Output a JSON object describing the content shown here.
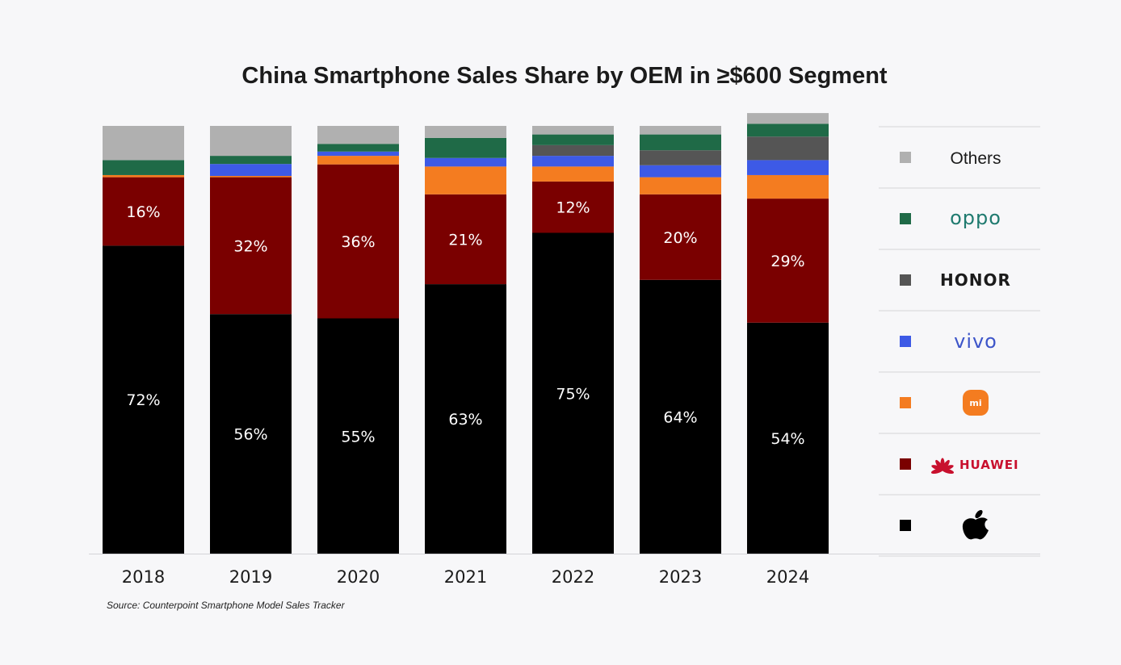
{
  "chart_data": {
    "type": "bar",
    "stacked": true,
    "title": "China Smartphone Sales Share by OEM in ≥$600 Segment",
    "source": "Source: Counterpoint Smartphone Model Sales Tracker",
    "categories": [
      "2018",
      "2019",
      "2020",
      "2021",
      "2022",
      "2023",
      "2024"
    ],
    "ylim": [
      0,
      100
    ],
    "grid": false,
    "legend_position": "right",
    "series": [
      {
        "key": "apple",
        "name": "",
        "logo": "apple-logo",
        "color": "#000000",
        "values": [
          72,
          56,
          55,
          63,
          75,
          64,
          54
        ],
        "labels": [
          "72%",
          "56%",
          "55%",
          "63%",
          "75%",
          "64%",
          "54%"
        ]
      },
      {
        "key": "huawei",
        "name": "HUAWEI",
        "logo": "huawei-logo",
        "color": "#7a0000",
        "values": [
          16,
          32,
          36,
          21,
          12,
          20,
          29
        ],
        "labels": [
          "16%",
          "32%",
          "36%",
          "21%",
          "12%",
          "20%",
          "29%"
        ]
      },
      {
        "key": "xiaomi",
        "name": "mi",
        "logo": "xiaomi-logo",
        "color": "#f47c20",
        "values": [
          0.5,
          0.3,
          2,
          6.5,
          3.5,
          4,
          5.5
        ]
      },
      {
        "key": "vivo",
        "name": "vivo",
        "logo": "vivo-logo",
        "color": "#3d5ae6",
        "values": [
          0,
          2.8,
          1,
          2,
          2.5,
          2.8,
          3.5
        ]
      },
      {
        "key": "honor",
        "name": "HONOR",
        "logo": "honor-logo",
        "color": "#555555",
        "values": [
          0,
          0,
          0,
          0,
          2.5,
          3.5,
          5.5
        ]
      },
      {
        "key": "oppo",
        "name": "oppo",
        "logo": "oppo-logo",
        "color": "#1f6a47",
        "values": [
          3.5,
          1.9,
          1.8,
          4.7,
          2.5,
          3.7,
          3
        ]
      },
      {
        "key": "others",
        "name": "Others",
        "logo": "",
        "color": "#b0b0b0",
        "values": [
          8,
          7,
          4.2,
          2.8,
          2,
          2,
          2.5
        ]
      }
    ]
  }
}
